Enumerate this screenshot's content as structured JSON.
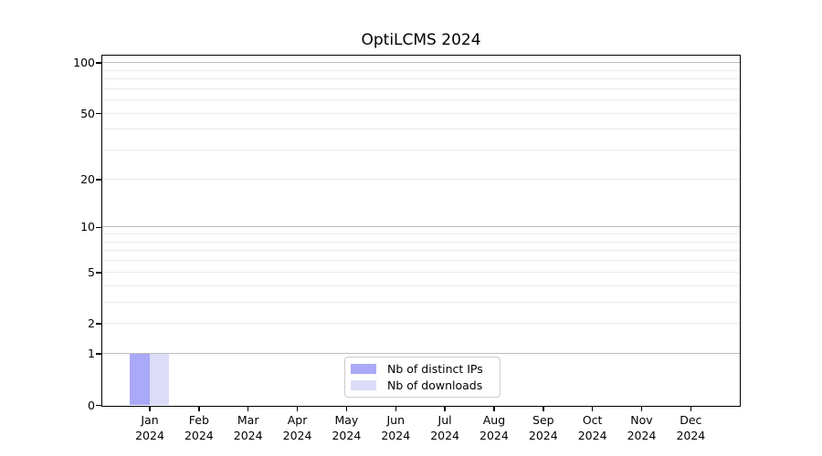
{
  "chart_data": {
    "type": "bar",
    "title": "OptiLCMS 2024",
    "xlabel": "",
    "ylabel": "",
    "categories": [
      {
        "month": "Jan",
        "year": "2024"
      },
      {
        "month": "Feb",
        "year": "2024"
      },
      {
        "month": "Mar",
        "year": "2024"
      },
      {
        "month": "Apr",
        "year": "2024"
      },
      {
        "month": "May",
        "year": "2024"
      },
      {
        "month": "Jun",
        "year": "2024"
      },
      {
        "month": "Jul",
        "year": "2024"
      },
      {
        "month": "Aug",
        "year": "2024"
      },
      {
        "month": "Sep",
        "year": "2024"
      },
      {
        "month": "Oct",
        "year": "2024"
      },
      {
        "month": "Nov",
        "year": "2024"
      },
      {
        "month": "Dec",
        "year": "2024"
      }
    ],
    "series": [
      {
        "name": "Nb of distinct IPs",
        "slug": "nb-of-distinct-ips",
        "color": "#a9a9f7",
        "values": [
          1,
          0,
          0,
          0,
          0,
          0,
          0,
          0,
          0,
          0,
          0,
          0
        ]
      },
      {
        "name": "Nb of downloads",
        "slug": "nb-of-downloads",
        "color": "#dcdcf8",
        "values": [
          1,
          0,
          0,
          0,
          0,
          0,
          0,
          0,
          0,
          0,
          0,
          0
        ]
      }
    ],
    "y_axis": {
      "scale": "log1p",
      "axis_max": 110,
      "tick_values": [
        0,
        1,
        2,
        5,
        10,
        20,
        50,
        100
      ],
      "tick_labels": [
        "0",
        "1",
        "2",
        "5",
        "10",
        "20",
        "50",
        "100"
      ],
      "major_grid_values": [
        1,
        10,
        100
      ],
      "minor_grid_values": [
        2,
        3,
        4,
        5,
        6,
        7,
        8,
        9,
        20,
        30,
        40,
        50,
        60,
        70,
        80,
        90
      ]
    },
    "legend": {
      "position": "lower center",
      "items": [
        "Nb of distinct IPs",
        "Nb of downloads"
      ]
    },
    "grid": true,
    "colors": {
      "background": "#ffffff",
      "spine": "#000000",
      "text": "#000000",
      "major_grid": "#bdbdbd",
      "minor_grid": "#ebebeb",
      "legend_border": "#cccccc"
    }
  }
}
